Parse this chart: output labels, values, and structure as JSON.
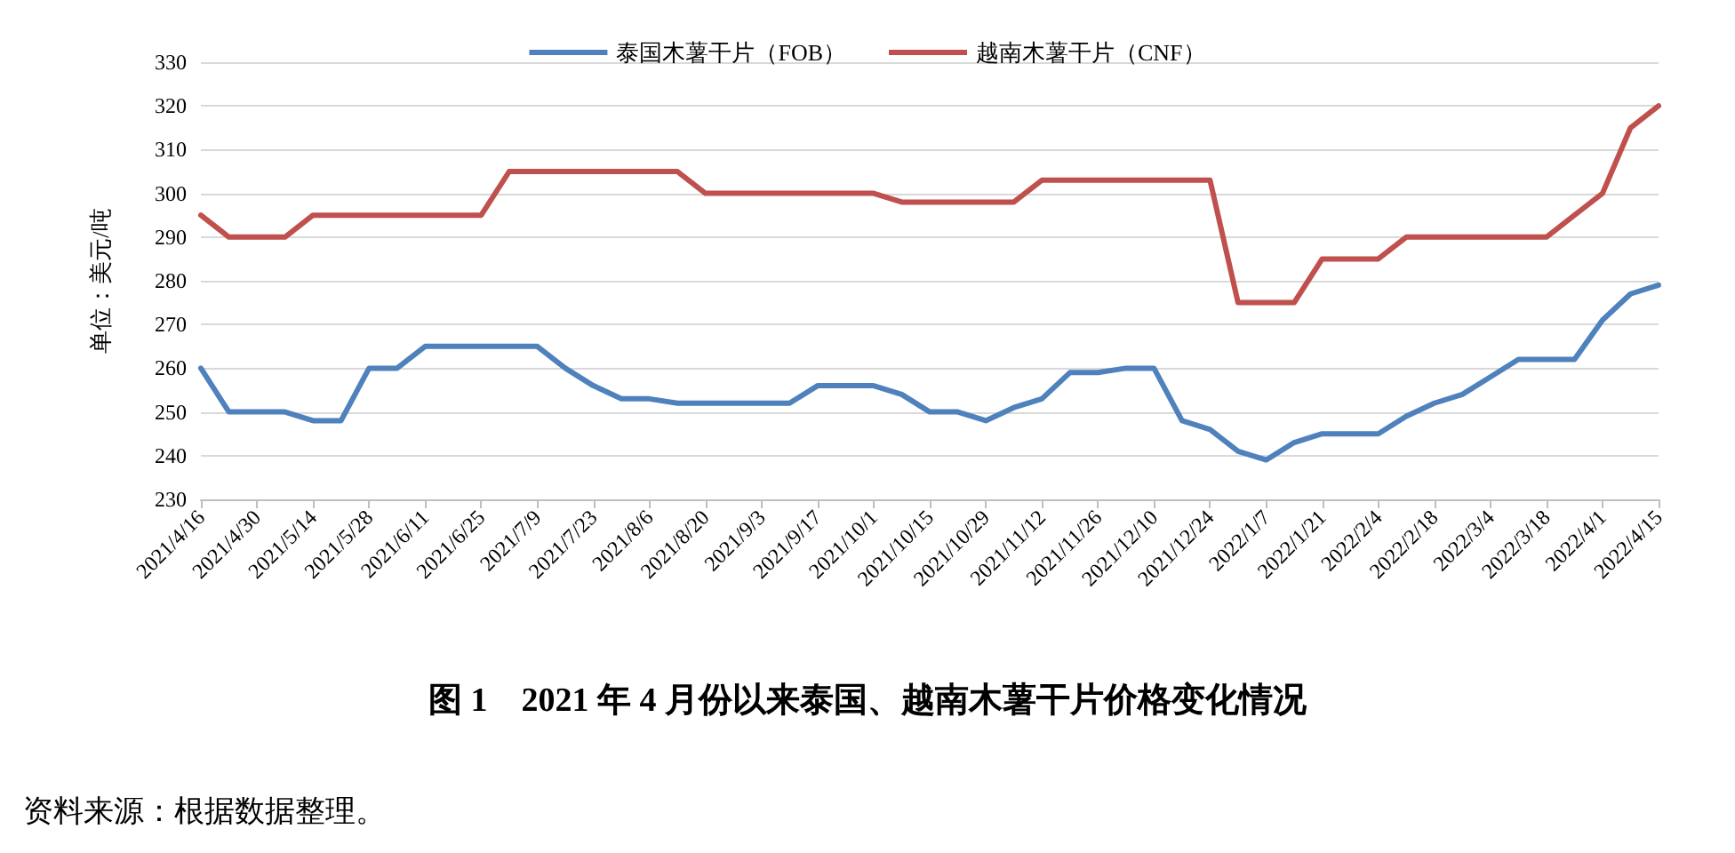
{
  "chart_data": {
    "type": "line",
    "title": "图 1　2021 年 4 月份以来泰国、越南木薯干片价格变化情况",
    "ylabel": "单位：美元/吨",
    "annotations": [
      "资料来源：根据数据整理。"
    ],
    "categories": [
      "2021/4/16",
      null,
      "2021/4/30",
      null,
      "2021/5/14",
      null,
      "2021/5/28",
      null,
      "2021/6/11",
      null,
      "2021/6/25",
      null,
      "2021/7/9",
      null,
      "2021/7/23",
      null,
      "2021/8/6",
      null,
      "2021/8/20",
      null,
      "2021/9/3",
      null,
      "2021/9/17",
      null,
      "2021/10/1",
      null,
      "2021/10/15",
      null,
      "2021/10/29",
      null,
      "2021/11/12",
      null,
      "2021/11/26",
      null,
      "2021/12/10",
      null,
      "2021/12/24",
      null,
      "2022/1/7",
      null,
      "2022/1/21",
      null,
      "2022/2/4",
      null,
      "2022/2/18",
      null,
      "2022/3/4",
      null,
      "2022/3/18",
      null,
      "2022/4/1",
      null,
      "2022/4/15"
    ],
    "series": [
      {
        "name": "泰国木薯干片（FOB）",
        "color": "#4f81bd",
        "values": [
          260,
          250,
          250,
          250,
          248,
          248,
          260,
          260,
          265,
          265,
          265,
          265,
          265,
          260,
          256,
          253,
          253,
          252,
          252,
          252,
          252,
          252,
          256,
          256,
          256,
          254,
          250,
          250,
          248,
          251,
          253,
          259,
          259,
          260,
          260,
          248,
          246,
          241,
          239,
          243,
          245,
          245,
          245,
          249,
          252,
          254,
          258,
          262,
          262,
          262,
          271,
          277,
          279
        ]
      },
      {
        "name": "越南木薯干片（CNF）",
        "color": "#c0504d",
        "values": [
          295,
          290,
          290,
          290,
          295,
          295,
          295,
          295,
          295,
          295,
          295,
          305,
          305,
          305,
          305,
          305,
          305,
          305,
          300,
          300,
          300,
          300,
          300,
          300,
          300,
          298,
          298,
          298,
          298,
          298,
          303,
          303,
          303,
          303,
          303,
          303,
          303,
          275,
          275,
          275,
          285,
          285,
          285,
          290,
          290,
          290,
          290,
          290,
          290,
          295,
          300,
          315,
          320
        ]
      }
    ],
    "ylim": [
      230,
      330
    ],
    "yticks": [
      230,
      240,
      250,
      260,
      270,
      280,
      290,
      300,
      310,
      320,
      330
    ],
    "grid": "y",
    "legend": "top",
    "marker": "none",
    "line_style": "solid"
  }
}
